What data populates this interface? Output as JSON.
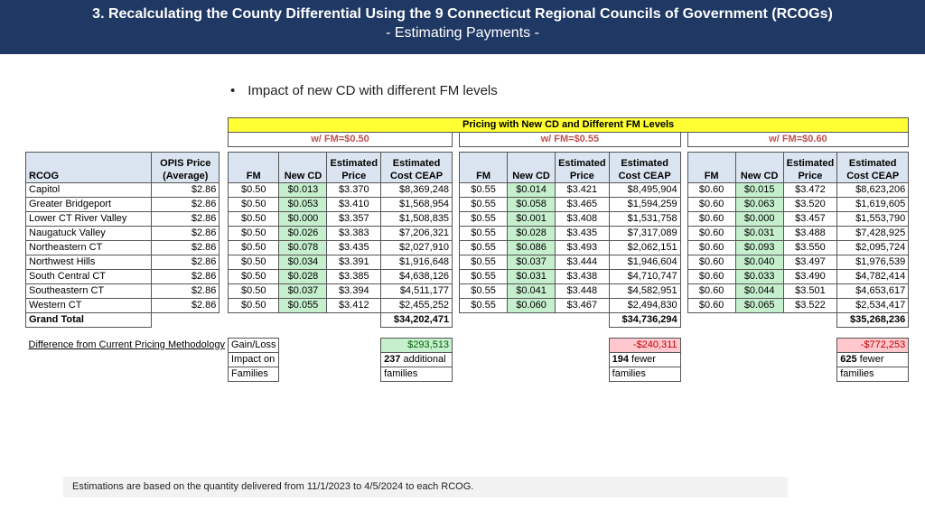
{
  "header": {
    "title": "3. Recalculating the County Differential Using the 9 Connecticut Regional Councils of Government (RCOGs)",
    "subtitle": "- Estimating Payments -"
  },
  "bullet": "Impact of new CD with different FM levels",
  "table": {
    "banner": "Pricing with New CD and Different FM Levels",
    "groups": [
      "w/ FM=$0.50",
      "w/ FM=$0.55",
      "w/ FM=$0.60"
    ],
    "col_rcog": "RCOG",
    "col_opis_1": "OPIS Price",
    "col_opis_2": "(Average)",
    "col_fm": "FM",
    "col_newcd": "New CD",
    "col_est_1": "Estimated",
    "col_price": "Price",
    "col_cost": "Cost CEAP",
    "rows": [
      [
        "Capitol",
        "$2.86",
        "$0.50",
        "$0.013",
        "$3.370",
        "$8,369,248",
        "$0.55",
        "$0.014",
        "$3.421",
        "$8,495,904",
        "$0.60",
        "$0.015",
        "$3.472",
        "$8,623,206"
      ],
      [
        "Greater Bridgeport",
        "$2.86",
        "$0.50",
        "$0.053",
        "$3.410",
        "$1,568,954",
        "$0.55",
        "$0.058",
        "$3.465",
        "$1,594,259",
        "$0.60",
        "$0.063",
        "$3.520",
        "$1,619,605"
      ],
      [
        "Lower CT River Valley",
        "$2.86",
        "$0.50",
        "$0.000",
        "$3.357",
        "$1,508,835",
        "$0.55",
        "$0.001",
        "$3.408",
        "$1,531,758",
        "$0.60",
        "$0.000",
        "$3.457",
        "$1,553,790"
      ],
      [
        "Naugatuck Valley",
        "$2.86",
        "$0.50",
        "$0.026",
        "$3.383",
        "$7,206,321",
        "$0.55",
        "$0.028",
        "$3.435",
        "$7,317,089",
        "$0.60",
        "$0.031",
        "$3.488",
        "$7,428,925"
      ],
      [
        "Northeastern CT",
        "$2.86",
        "$0.50",
        "$0.078",
        "$3.435",
        "$2,027,910",
        "$0.55",
        "$0.086",
        "$3.493",
        "$2,062,151",
        "$0.60",
        "$0.093",
        "$3.550",
        "$2,095,724"
      ],
      [
        "Northwest Hills",
        "$2.86",
        "$0.50",
        "$0.034",
        "$3.391",
        "$1,916,648",
        "$0.55",
        "$0.037",
        "$3.444",
        "$1,946,604",
        "$0.60",
        "$0.040",
        "$3.497",
        "$1,976,539"
      ],
      [
        "South Central CT",
        "$2.86",
        "$0.50",
        "$0.028",
        "$3.385",
        "$4,638,126",
        "$0.55",
        "$0.031",
        "$3.438",
        "$4,710,747",
        "$0.60",
        "$0.033",
        "$3.490",
        "$4,782,414"
      ],
      [
        "Southeastern CT",
        "$2.86",
        "$0.50",
        "$0.037",
        "$3.394",
        "$4,511,177",
        "$0.55",
        "$0.041",
        "$3.448",
        "$4,582,951",
        "$0.60",
        "$0.044",
        "$3.501",
        "$4,653,617"
      ],
      [
        "Western CT",
        "$2.86",
        "$0.50",
        "$0.055",
        "$3.412",
        "$2,455,252",
        "$0.55",
        "$0.060",
        "$3.467",
        "$2,494,830",
        "$0.60",
        "$0.065",
        "$3.522",
        "$2,534,417"
      ]
    ],
    "grand_total_label": "Grand Total",
    "totals": [
      "$34,202,471",
      "$34,736,294",
      "$35,268,236"
    ],
    "diff_label": "Difference from Current Pricing Methodology",
    "gain_loss_label": "Gain/Loss",
    "impact_label_1": "Impact on",
    "impact_label_2": "Families",
    "gains": [
      "$293,513",
      "-$240,311",
      "-$772,253"
    ],
    "impacts": [
      {
        "n": "237",
        "rest": " additional",
        "line2": "families"
      },
      {
        "n": "194",
        "rest": " fewer",
        "line2": "families"
      },
      {
        "n": "625",
        "rest": " fewer",
        "line2": "families"
      }
    ]
  },
  "footer": "Estimations are based on the quantity delivered from 11/1/2023 to 4/5/2024 to each RCOG."
}
